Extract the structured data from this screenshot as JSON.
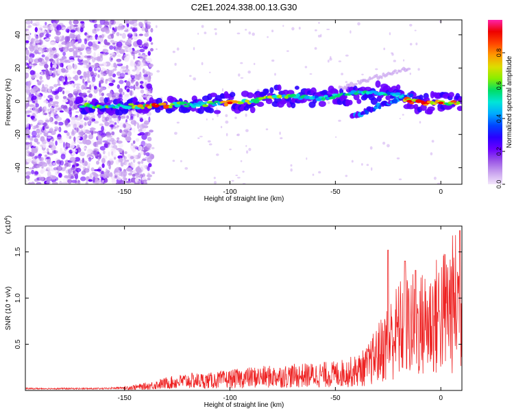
{
  "title": "C2E1.2024.338.00.13.G30",
  "colors": {
    "trace": "#ee2222",
    "colormap": [
      "#f3e6fb",
      "#c9a3ef",
      "#9a55e6",
      "#6a00ff",
      "#2a00ff",
      "#0044ff",
      "#00aaff",
      "#00e5d8",
      "#00dd66",
      "#88ee00",
      "#dddd00",
      "#ff9900",
      "#ff4400",
      "#ee0000",
      "#ff22aa"
    ]
  },
  "chart_data": [
    {
      "type": "heatmap",
      "xlabel": "Height of straight line (km)",
      "ylabel": "Frequency (Hz)",
      "xlim": [
        -197,
        10
      ],
      "ylim": [
        -50,
        49
      ],
      "xticks": [
        -150,
        -100,
        -50,
        0
      ],
      "yticks": [
        -40,
        -20,
        0,
        20,
        40
      ],
      "colorbar": {
        "label": "Normalized spectral amplitude",
        "range": [
          0,
          1
        ],
        "ticks": [
          0.0,
          0.2,
          0.4,
          0.6,
          0.8
        ]
      },
      "ridge": [
        {
          "x": -168,
          "y": -3,
          "amp": 0.55
        },
        {
          "x": -155,
          "y": -3,
          "amp": 0.5
        },
        {
          "x": -145,
          "y": -3,
          "amp": 0.6
        },
        {
          "x": -135,
          "y": -3,
          "amp": 0.85
        },
        {
          "x": -125,
          "y": -2,
          "amp": 0.6
        },
        {
          "x": -115,
          "y": -2,
          "amp": 0.55
        },
        {
          "x": -105,
          "y": -1,
          "amp": 0.55
        },
        {
          "x": -100,
          "y": -1,
          "amp": 0.8
        },
        {
          "x": -90,
          "y": 0,
          "amp": 0.6
        },
        {
          "x": -80,
          "y": 3,
          "amp": 0.6
        },
        {
          "x": -70,
          "y": 3,
          "amp": 0.55
        },
        {
          "x": -60,
          "y": 2,
          "amp": 0.5
        },
        {
          "x": -50,
          "y": 3,
          "amp": 0.5
        },
        {
          "x": -40,
          "y": 5,
          "amp": 0.5
        },
        {
          "x": -30,
          "y": 5,
          "amp": 0.45
        },
        {
          "x": -20,
          "y": 4,
          "amp": 0.45
        },
        {
          "x": -15,
          "y": 0,
          "amp": 0.85
        },
        {
          "x": -8,
          "y": -1,
          "amp": 0.85
        },
        {
          "x": 0,
          "y": -1,
          "amp": 0.8
        },
        {
          "x": 8,
          "y": -1,
          "amp": 0.7
        }
      ]
    },
    {
      "type": "line",
      "xlabel": "Height of straight line (km)",
      "ylabel": "SNR (10 * v/v)",
      "y_multiplier": "(x10^4)",
      "xlim": [
        -197,
        10
      ],
      "ylim": [
        0,
        1.78
      ],
      "xticks": [
        -150,
        -100,
        -50,
        0
      ],
      "yticks": [
        0.5,
        1.0,
        1.5
      ],
      "series": [
        {
          "x": [
            -197,
            -180,
            -160,
            -150,
            -140,
            -130,
            -120,
            -110,
            -100,
            -90,
            -80,
            -70,
            -60,
            -50,
            -40,
            -35,
            -30,
            -25,
            -20,
            -15,
            -10,
            -5,
            0,
            5,
            10
          ],
          "y": [
            0.02,
            0.02,
            0.02,
            0.03,
            0.05,
            0.09,
            0.12,
            0.12,
            0.14,
            0.16,
            0.17,
            0.18,
            0.19,
            0.2,
            0.24,
            0.3,
            0.45,
            0.6,
            0.75,
            0.8,
            0.8,
            0.85,
            0.95,
            1.05,
            1.15
          ],
          "peaks": [
            {
              "x": -25,
              "y": 1.52
            },
            {
              "x": -17,
              "y": 1.4
            },
            {
              "x": -12,
              "y": 1.3
            },
            {
              "x": 9,
              "y": 1.73
            }
          ]
        }
      ]
    }
  ]
}
